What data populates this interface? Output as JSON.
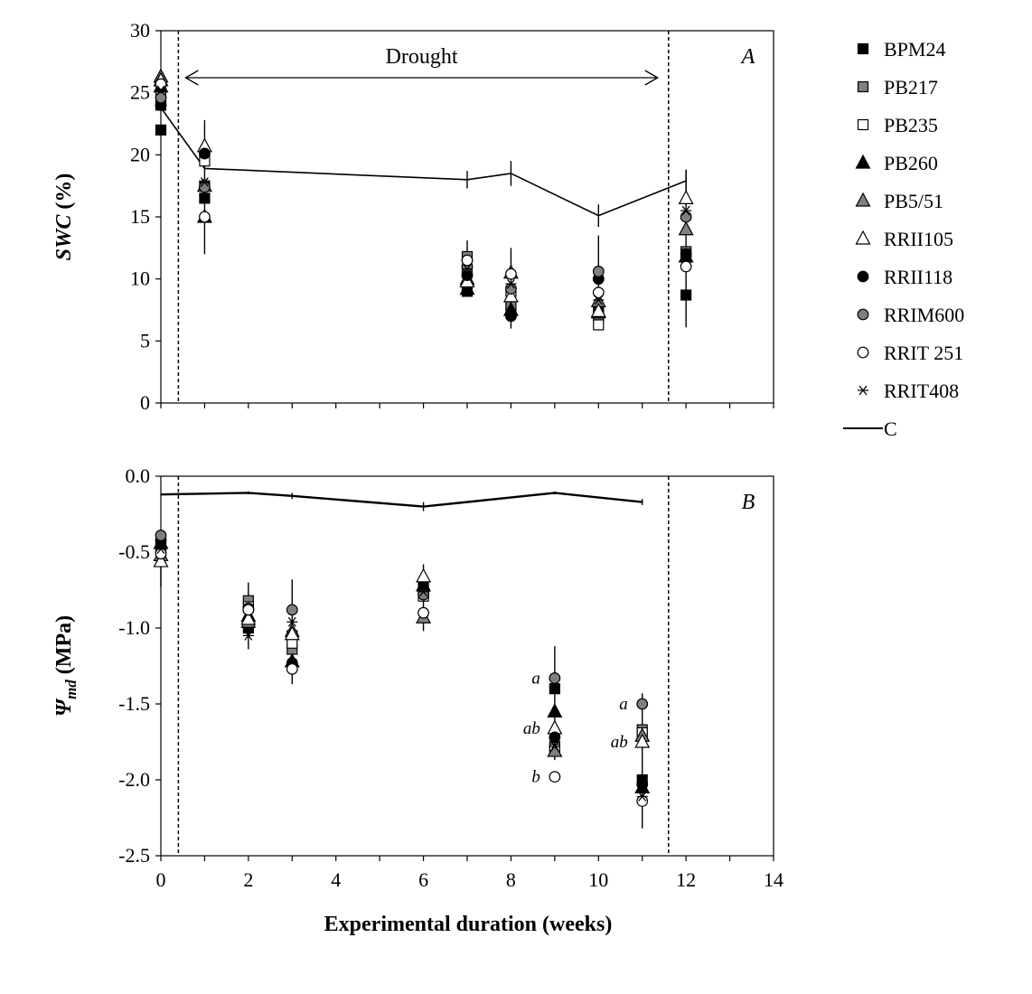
{
  "chart_data": [
    {
      "type": "scatter",
      "panel": "A",
      "ylabel": {
        "var": "SWC",
        "unit": "(%)"
      },
      "xlim": [
        0,
        14
      ],
      "ylim": [
        0,
        30
      ],
      "x_ticks": [
        0,
        1,
        2,
        3,
        4,
        5,
        6,
        7,
        8,
        9,
        10,
        11,
        12,
        13,
        14
      ],
      "y_ticks": [
        0,
        5,
        10,
        15,
        20,
        25,
        30
      ],
      "drought_period": {
        "label": "Drought",
        "start": 0.4,
        "end": 11.6
      },
      "control": {
        "name": "C",
        "points": [
          {
            "x": 0,
            "y": 23.8,
            "err": 0
          },
          {
            "x": 1,
            "y": 18.9,
            "err": 0
          },
          {
            "x": 7,
            "y": 18.0,
            "err": 0.7
          },
          {
            "x": 8,
            "y": 18.5,
            "err": 1.0
          },
          {
            "x": 10,
            "y": 15.1,
            "err": 0.9
          },
          {
            "x": 12,
            "y": 17.9,
            "err": 0.9
          }
        ]
      },
      "series": [
        {
          "name": "BPM24",
          "marker": "square",
          "fill": "#000000",
          "points": [
            [
              0,
              22.0
            ],
            [
              1,
              16.5
            ],
            [
              7,
              9.0
            ],
            [
              8,
              8.0
            ],
            [
              10,
              7.5
            ],
            [
              12,
              8.7
            ]
          ]
        },
        {
          "name": "PB217",
          "marker": "square",
          "fill": "#808080",
          "points": [
            [
              0,
              24.0
            ],
            [
              1,
              17.5
            ],
            [
              7,
              11.8
            ],
            [
              8,
              7.8
            ],
            [
              10,
              7.0
            ],
            [
              12,
              12.2
            ]
          ]
        },
        {
          "name": "PB235",
          "marker": "square",
          "fill": "#ffffff",
          "points": [
            [
              0,
              25.0
            ],
            [
              1,
              19.5
            ],
            [
              7,
              10.5
            ],
            [
              8,
              9.0
            ],
            [
              10,
              6.3
            ],
            [
              12,
              12.0
            ]
          ]
        },
        {
          "name": "PB260",
          "marker": "triangle",
          "fill": "#000000",
          "points": [
            [
              0,
              25.5
            ],
            [
              1,
              15.0
            ],
            [
              7,
              9.2
            ],
            [
              8,
              7.5
            ],
            [
              10,
              7.3
            ],
            [
              12,
              11.8
            ]
          ]
        },
        {
          "name": "PB5/51",
          "marker": "triangle",
          "fill": "#808080",
          "points": [
            [
              0,
              26.3
            ],
            [
              1,
              17.5
            ],
            [
              7,
              10.0
            ],
            [
              8,
              10.5
            ],
            [
              10,
              8.2
            ],
            [
              12,
              14.0
            ]
          ]
        },
        {
          "name": "RRII105",
          "marker": "triangle",
          "fill": "#ffffff",
          "points": [
            [
              0,
              26.0
            ],
            [
              1,
              20.7
            ],
            [
              7,
              9.8
            ],
            [
              8,
              8.6
            ],
            [
              10,
              7.4
            ],
            [
              12,
              16.5
            ]
          ]
        },
        {
          "name": "RRII118",
          "marker": "circle",
          "fill": "#000000",
          "points": [
            [
              0,
              24.0
            ],
            [
              1,
              20.1
            ],
            [
              7,
              10.3
            ],
            [
              8,
              7.0
            ],
            [
              10,
              10.0
            ],
            [
              12,
              12.0
            ]
          ]
        },
        {
          "name": "RRIM600",
          "marker": "circle",
          "fill": "#808080",
          "points": [
            [
              0,
              24.6
            ],
            [
              1,
              17.4
            ],
            [
              7,
              11.0
            ],
            [
              8,
              9.2
            ],
            [
              10,
              10.6
            ],
            [
              12,
              15.0
            ]
          ]
        },
        {
          "name": "RRIT 251",
          "marker": "circle",
          "fill": "#ffffff",
          "points": [
            [
              0,
              25.7
            ],
            [
              1,
              15.0
            ],
            [
              7,
              11.5
            ],
            [
              8,
              10.4
            ],
            [
              10,
              8.9
            ],
            [
              12,
              11.0
            ]
          ]
        },
        {
          "name": "RRIT408",
          "marker": "star",
          "fill": "#000000",
          "points": [
            [
              0,
              25.2
            ],
            [
              1,
              17.8
            ],
            [
              7,
              10.8
            ],
            [
              8,
              9.6
            ],
            [
              10,
              8.3
            ],
            [
              12,
              15.5
            ]
          ]
        }
      ],
      "error_bars": [
        {
          "x": 1,
          "low": 12.0,
          "high": 22.8
        },
        {
          "x": 7,
          "low": 9.0,
          "high": 13.1
        },
        {
          "x": 8,
          "low": 6.0,
          "high": 12.5
        },
        {
          "x": 10,
          "low": 6.5,
          "high": 13.5
        },
        {
          "x": 12,
          "low": 6.1,
          "high": 18.8
        }
      ]
    },
    {
      "type": "scatter",
      "panel": "B",
      "ylabel": {
        "var": "Ψ",
        "sub": "md",
        "unit": " (MPa)"
      },
      "xlabel": "Experimental duration (weeks)",
      "xlim": [
        0,
        14
      ],
      "ylim": [
        -2.5,
        0
      ],
      "x_ticks": [
        0,
        2,
        4,
        6,
        8,
        10,
        12,
        14
      ],
      "x_minor_ticks": [
        1,
        3,
        5,
        7,
        9,
        11,
        13
      ],
      "y_ticks": [
        0.0,
        -0.5,
        -1.0,
        -1.5,
        -2.0,
        -2.5
      ],
      "y_tick_labels": [
        "0.0",
        "-0.5",
        "-1.0",
        "-1.5",
        "-2.0",
        "-2.5"
      ],
      "drought_period": {
        "start": 0.4,
        "end": 11.6
      },
      "control": {
        "name": "C",
        "points": [
          {
            "x": 0,
            "y": -0.12,
            "err": 0
          },
          {
            "x": 2,
            "y": -0.11,
            "err": 0.01
          },
          {
            "x": 3,
            "y": -0.13,
            "err": 0.02
          },
          {
            "x": 6,
            "y": -0.2,
            "err": 0.03
          },
          {
            "x": 9,
            "y": -0.11,
            "err": 0.01
          },
          {
            "x": 11,
            "y": -0.17,
            "err": 0.02
          }
        ]
      },
      "series": [
        {
          "name": "BPM24",
          "marker": "square",
          "fill": "#000000",
          "points": [
            [
              0,
              -0.45
            ],
            [
              2,
              -1.0
            ],
            [
              3,
              -1.05
            ],
            [
              6,
              -0.73
            ],
            [
              9,
              -1.4
            ],
            [
              11,
              -2.0
            ]
          ]
        },
        {
          "name": "PB217",
          "marker": "square",
          "fill": "#808080",
          "points": [
            [
              0,
              -0.47
            ],
            [
              2,
              -0.82
            ],
            [
              3,
              -1.14
            ],
            [
              6,
              -0.77
            ],
            [
              9,
              -1.78
            ],
            [
              11,
              -1.67
            ]
          ]
        },
        {
          "name": "PB235",
          "marker": "square",
          "fill": "#ffffff",
          "points": [
            [
              0,
              -0.49
            ],
            [
              2,
              -0.86
            ],
            [
              3,
              -1.1
            ],
            [
              6,
              -0.79
            ],
            [
              9,
              -1.8
            ],
            [
              11,
              -1.69
            ]
          ]
        },
        {
          "name": "PB260",
          "marker": "triangle",
          "fill": "#000000",
          "points": [
            [
              0,
              -0.44
            ],
            [
              2,
              -0.92
            ],
            [
              3,
              -1.22
            ],
            [
              6,
              -0.72
            ],
            [
              9,
              -1.55
            ],
            [
              11,
              -2.05
            ]
          ]
        },
        {
          "name": "PB5/51",
          "marker": "triangle",
          "fill": "#808080",
          "points": [
            [
              0,
              -0.52
            ],
            [
              2,
              -0.96
            ],
            [
              3,
              -1.02
            ],
            [
              6,
              -0.93
            ],
            [
              9,
              -1.81
            ],
            [
              11,
              -1.71
            ]
          ]
        },
        {
          "name": "RRII105",
          "marker": "triangle",
          "fill": "#ffffff",
          "points": [
            [
              0,
              -0.56
            ],
            [
              2,
              -0.94
            ],
            [
              3,
              -1.04
            ],
            [
              6,
              -0.66
            ],
            [
              9,
              -1.66
            ],
            [
              11,
              -1.75
            ]
          ]
        },
        {
          "name": "RRII118",
          "marker": "circle",
          "fill": "#000000",
          "points": [
            [
              0,
              -0.42
            ],
            [
              2,
              -0.88
            ],
            [
              3,
              -1.23
            ],
            [
              6,
              -0.75
            ],
            [
              9,
              -1.72
            ],
            [
              11,
              -2.03
            ]
          ]
        },
        {
          "name": "RRIM600",
          "marker": "circle",
          "fill": "#808080",
          "points": [
            [
              0,
              -0.39
            ],
            [
              2,
              -0.87
            ],
            [
              3,
              -0.88
            ],
            [
              6,
              -0.78
            ],
            [
              9,
              -1.33
            ],
            [
              11,
              -1.5
            ]
          ]
        },
        {
          "name": "RRIT 251",
          "marker": "circle",
          "fill": "#ffffff",
          "points": [
            [
              0,
              -0.51
            ],
            [
              2,
              -0.88
            ],
            [
              3,
              -1.27
            ],
            [
              6,
              -0.9
            ],
            [
              9,
              -1.98
            ],
            [
              11,
              -2.14
            ]
          ]
        },
        {
          "name": "RRIT408",
          "marker": "star",
          "fill": "#000000",
          "points": [
            [
              0,
              -0.48
            ],
            [
              2,
              -1.05
            ],
            [
              3,
              -0.96
            ],
            [
              6,
              -0.76
            ],
            [
              9,
              -1.78
            ],
            [
              11,
              -2.11
            ]
          ]
        }
      ],
      "error_bars": [
        {
          "x": 0,
          "low": -0.73,
          "high": -0.36
        },
        {
          "x": 2,
          "low": -1.14,
          "high": -0.7
        },
        {
          "x": 3,
          "low": -1.37,
          "high": -0.68
        },
        {
          "x": 6,
          "low": -1.02,
          "high": -0.58
        },
        {
          "x": 9,
          "low": -1.87,
          "high": -1.12
        },
        {
          "x": 11,
          "low": -2.32,
          "high": -1.43
        }
      ],
      "significance_letters": [
        {
          "text": "a",
          "x": 9,
          "y": -1.33
        },
        {
          "text": "ab",
          "x": 9,
          "y": -1.66
        },
        {
          "text": "b",
          "x": 9,
          "y": -1.98
        },
        {
          "text": "a",
          "x": 11,
          "y": -1.5
        },
        {
          "text": "ab",
          "x": 11,
          "y": -1.75
        }
      ]
    }
  ],
  "legend": {
    "placement": "right",
    "entries": [
      {
        "name": "BPM24",
        "marker": "square",
        "fill": "#000000"
      },
      {
        "name": "PB217",
        "marker": "square",
        "fill": "#808080"
      },
      {
        "name": "PB235",
        "marker": "square",
        "fill": "#ffffff"
      },
      {
        "name": "PB260",
        "marker": "triangle",
        "fill": "#000000"
      },
      {
        "name": "PB5/51",
        "marker": "triangle",
        "fill": "#808080"
      },
      {
        "name": "RRII105",
        "marker": "triangle",
        "fill": "#ffffff"
      },
      {
        "name": "RRII118",
        "marker": "circle",
        "fill": "#000000"
      },
      {
        "name": "RRIM600",
        "marker": "circle",
        "fill": "#808080"
      },
      {
        "name": "RRIT 251",
        "marker": "circle",
        "fill": "#ffffff"
      },
      {
        "name": "RRIT408",
        "marker": "star",
        "fill": "#000000"
      },
      {
        "name": "C",
        "marker": "line",
        "fill": "#000000"
      }
    ]
  }
}
